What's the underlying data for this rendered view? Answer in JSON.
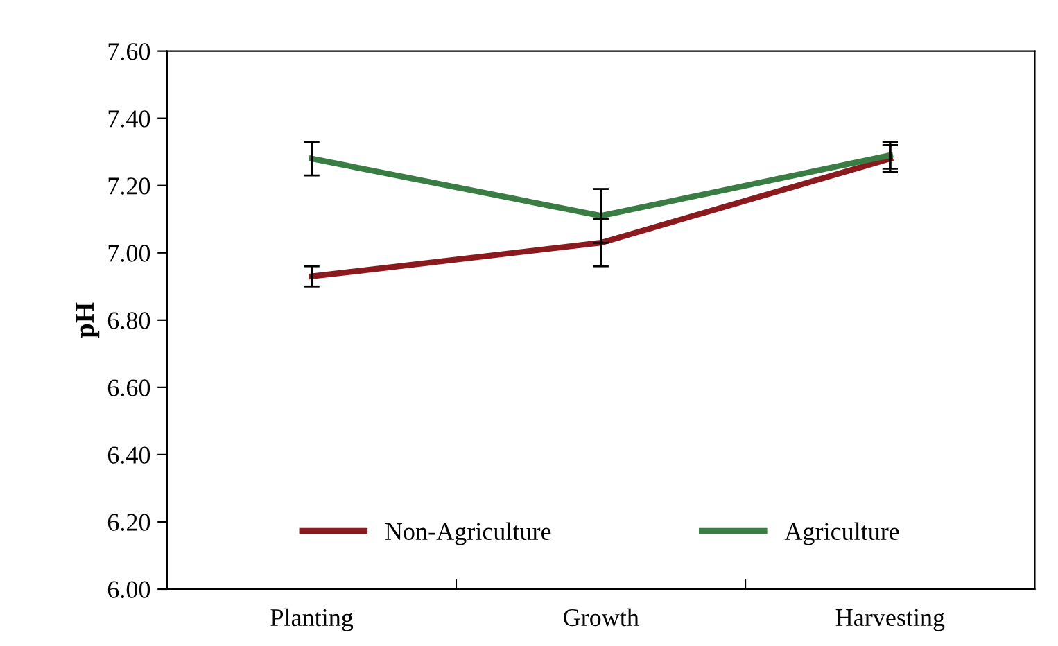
{
  "chart_data": {
    "type": "line",
    "ylabel": "pH",
    "categories": [
      "Planting",
      "Growth",
      "Harvesting"
    ],
    "series": [
      {
        "name": "Non-Agriculture",
        "color": "#8b1a1f",
        "values": [
          6.93,
          7.03,
          7.28
        ],
        "errors": [
          0.03,
          0.07,
          0.04
        ]
      },
      {
        "name": "Agriculture",
        "color": "#3a7d44",
        "values": [
          7.28,
          7.11,
          7.29
        ],
        "errors": [
          0.05,
          0.08,
          0.04
        ]
      }
    ],
    "ylim": [
      6.0,
      7.6
    ],
    "yticks": [
      {
        "value": 6.0,
        "label": "6.00"
      },
      {
        "value": 6.2,
        "label": "6.20"
      },
      {
        "value": 6.4,
        "label": "6.40"
      },
      {
        "value": 6.6,
        "label": "6.60"
      },
      {
        "value": 6.8,
        "label": "6.80"
      },
      {
        "value": 7.0,
        "label": "7.00"
      },
      {
        "value": 7.2,
        "label": "7.20"
      },
      {
        "value": 7.4,
        "label": "7.40"
      },
      {
        "value": 7.6,
        "label": "7.60"
      }
    ],
    "grid": false,
    "legend": "bottom",
    "marker": "none",
    "line_style": "solid"
  }
}
